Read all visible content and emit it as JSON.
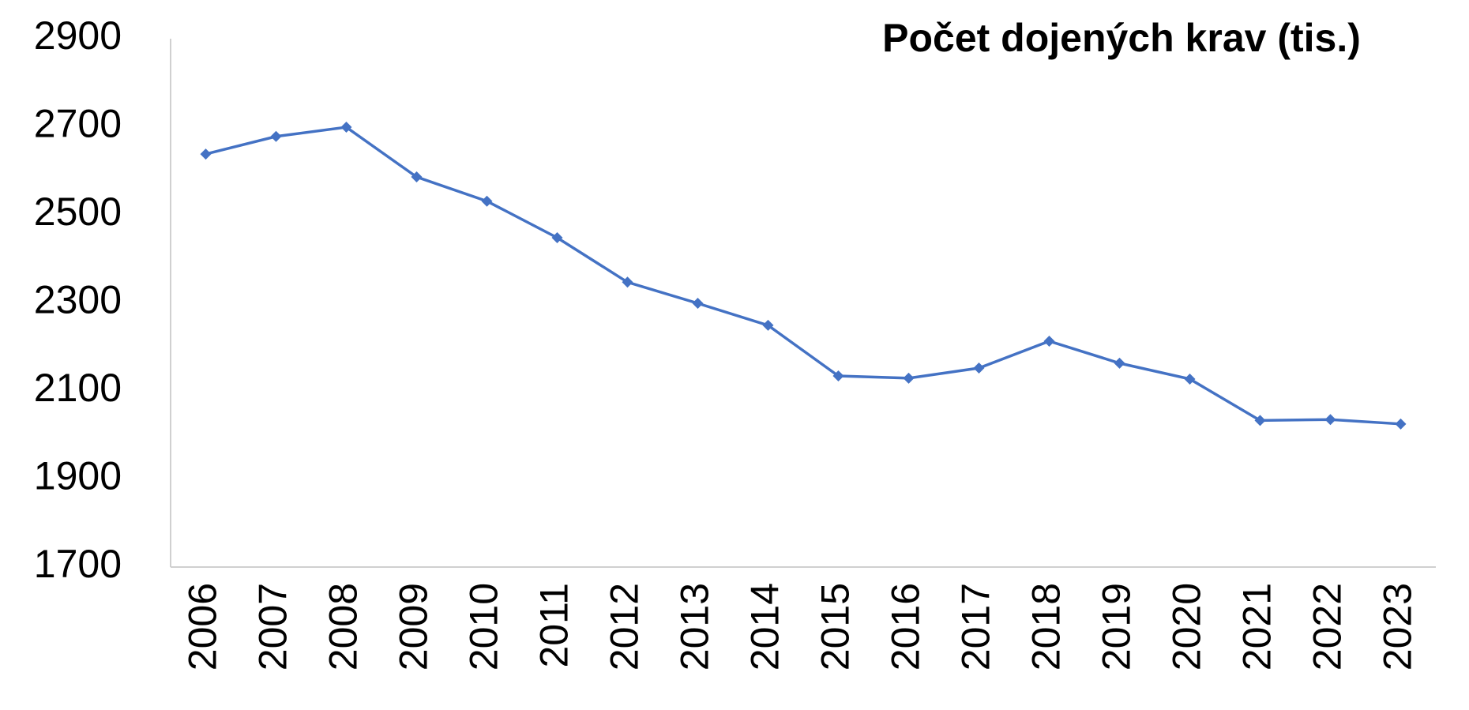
{
  "chart_data": {
    "type": "line",
    "title": "Počet dojených krav (tis.)",
    "categories": [
      "2006",
      "2007",
      "2008",
      "2009",
      "2010",
      "2011",
      "2012",
      "2013",
      "2014",
      "2015",
      "2016",
      "2017",
      "2018",
      "2019",
      "2020",
      "2021",
      "2022",
      "2023"
    ],
    "series": [
      {
        "name": "Počet dojených krav (tis.)",
        "color": "#4472c4",
        "values": [
          2638,
          2678,
          2699,
          2586,
          2531,
          2448,
          2347,
          2299,
          2249,
          2134,
          2129,
          2152,
          2213,
          2163,
          2127,
          2033,
          2035,
          2025
        ]
      }
    ],
    "ylim": [
      1700,
      2900
    ],
    "yticks": [
      1700,
      1900,
      2100,
      2300,
      2500,
      2700,
      2900
    ],
    "grid": false
  }
}
